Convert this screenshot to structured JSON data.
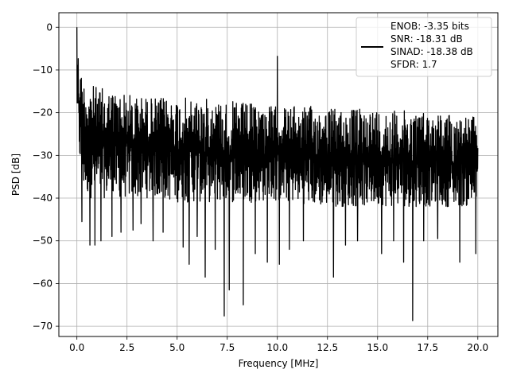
{
  "chart_data": {
    "type": "line",
    "title": "",
    "xlabel": "Frequency [MHz]",
    "ylabel": "PSD [dB]",
    "xlim": [
      -0.9,
      21.0
    ],
    "ylim": [
      -72.4,
      3.4
    ],
    "x_ticks": [
      0.0,
      2.5,
      5.0,
      7.5,
      10.0,
      12.5,
      15.0,
      17.5,
      20.0
    ],
    "x_tick_labels": [
      "0.0",
      "2.5",
      "5.0",
      "7.5",
      "10.0",
      "12.5",
      "15.0",
      "17.5",
      "20.0"
    ],
    "y_ticks": [
      0,
      -10,
      -20,
      -30,
      -40,
      -50,
      -60,
      -70
    ],
    "y_tick_labels": [
      "0",
      "−10",
      "−20",
      "−30",
      "−40",
      "−50",
      "−60",
      "−70"
    ],
    "grid": true,
    "legend_position": "top-right",
    "legend_lines": [
      "ENOB: -3.35 bits",
      "SNR: -18.31 dB",
      "SINAD: -18.38 dB",
      "SFDR: 1.7"
    ],
    "series_color": "#000000",
    "noise_envelope": {
      "x": [
        0.0,
        0.1,
        0.3,
        0.6,
        1.0,
        2.0,
        3.0,
        4.0,
        5.0,
        6.0,
        7.0,
        8.0,
        9.0,
        10.0,
        11.0,
        12.0,
        13.0,
        14.0,
        15.0,
        16.0,
        17.0,
        18.0,
        19.0,
        20.0
      ],
      "upper": [
        0,
        -8,
        -12,
        -13,
        -14,
        -15,
        -16,
        -16.5,
        -16.5,
        -16.5,
        -17,
        -17.5,
        -18,
        -18.5,
        -18.5,
        -18.5,
        -19,
        -19,
        -19,
        -19.5,
        -19.5,
        -20,
        -20.5,
        -21
      ],
      "lower": [
        -20,
        -30,
        -38,
        -40,
        -40,
        -40,
        -40,
        -40,
        -41,
        -41,
        -41,
        -41,
        -41,
        -41,
        -41,
        -42,
        -42,
        -42,
        -42,
        -42,
        -42,
        -42,
        -42,
        -42
      ]
    },
    "peaks": [
      {
        "x": 0.0,
        "y": 0.0
      },
      {
        "x": 10.0,
        "y": -6.8
      }
    ],
    "dips": [
      {
        "x": 0.25,
        "y": -45.5
      },
      {
        "x": 0.65,
        "y": -51
      },
      {
        "x": 0.9,
        "y": -51
      },
      {
        "x": 1.2,
        "y": -50
      },
      {
        "x": 1.75,
        "y": -49
      },
      {
        "x": 2.2,
        "y": -48
      },
      {
        "x": 2.8,
        "y": -47.5
      },
      {
        "x": 3.2,
        "y": -46
      },
      {
        "x": 3.8,
        "y": -50
      },
      {
        "x": 4.3,
        "y": -48
      },
      {
        "x": 5.3,
        "y": -51.5
      },
      {
        "x": 5.6,
        "y": -55.5
      },
      {
        "x": 6.0,
        "y": -49
      },
      {
        "x": 6.4,
        "y": -58.5
      },
      {
        "x": 6.9,
        "y": -52
      },
      {
        "x": 7.35,
        "y": -67.6
      },
      {
        "x": 7.6,
        "y": -61.5
      },
      {
        "x": 8.3,
        "y": -65
      },
      {
        "x": 8.9,
        "y": -53
      },
      {
        "x": 9.5,
        "y": -55
      },
      {
        "x": 10.1,
        "y": -55.5
      },
      {
        "x": 10.6,
        "y": -52
      },
      {
        "x": 11.3,
        "y": -50
      },
      {
        "x": 12.8,
        "y": -58.5
      },
      {
        "x": 13.4,
        "y": -51
      },
      {
        "x": 14.0,
        "y": -50
      },
      {
        "x": 15.2,
        "y": -53
      },
      {
        "x": 15.8,
        "y": -50
      },
      {
        "x": 16.3,
        "y": -55
      },
      {
        "x": 16.75,
        "y": -68.7
      },
      {
        "x": 17.3,
        "y": -50
      },
      {
        "x": 18.0,
        "y": -49.5
      },
      {
        "x": 19.1,
        "y": -55
      },
      {
        "x": 19.9,
        "y": -53
      }
    ]
  }
}
